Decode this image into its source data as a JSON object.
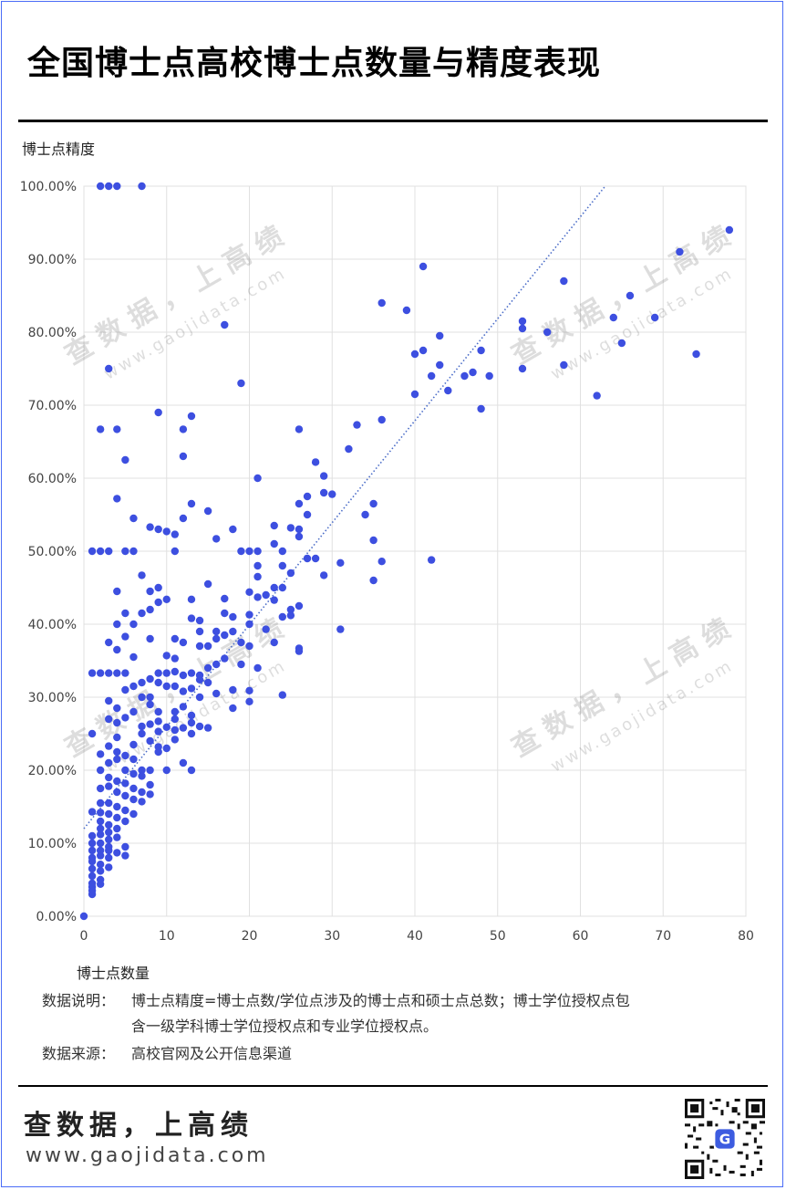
{
  "title": "全国博士点高校博士点数量与精度表现",
  "footer": {
    "note_label": "数据说明：",
    "note_line1": "博士点精度=博士点数/学位点涉及的博士点和硕士点总数；博士学位授权点包",
    "note_line2": "含一级学科博士学位授权点和专业学位授权点。",
    "source_label": "数据来源：",
    "source_text": "高校官网及公开信息渠道",
    "brand": "查数据，上高绩",
    "site": "www.gaojidata.com"
  },
  "watermark": {
    "line1": "查数据，上高绩",
    "line2": "www.gaojidata.com"
  },
  "colors": {
    "point": "#3d4fe0",
    "trend": "#4a6cc8",
    "grid": "#e0e0e0",
    "frame": "#4a6cf7"
  },
  "chart_data": {
    "type": "scatter",
    "xlabel": "博士点数量",
    "ylabel": "博士点精度",
    "xlim": [
      0,
      80
    ],
    "ylim": [
      0,
      100
    ],
    "x_ticks": [
      "0",
      "10",
      "20",
      "30",
      "40",
      "50",
      "60",
      "70",
      "80"
    ],
    "y_ticks": [
      "0.00%",
      "10.00%",
      "20.00%",
      "30.00%",
      "40.00%",
      "50.00%",
      "60.00%",
      "70.00%",
      "80.00%",
      "90.00%",
      "100.00%"
    ],
    "grid": true,
    "trendline": {
      "style": "dotted",
      "from": [
        0,
        12.0
      ],
      "to": [
        63,
        100
      ]
    },
    "points": [
      [
        0,
        0
      ],
      [
        2,
        100
      ],
      [
        3,
        100
      ],
      [
        4,
        100
      ],
      [
        7,
        100
      ],
      [
        78,
        94
      ],
      [
        72,
        91
      ],
      [
        41,
        89
      ],
      [
        58,
        87
      ],
      [
        66,
        85
      ],
      [
        36,
        84
      ],
      [
        39,
        83
      ],
      [
        64,
        82
      ],
      [
        69,
        82
      ],
      [
        53,
        81.5
      ],
      [
        53,
        80.5
      ],
      [
        56,
        80
      ],
      [
        43,
        79.5
      ],
      [
        65,
        78.5
      ],
      [
        17,
        81
      ],
      [
        41,
        77.5
      ],
      [
        40,
        77
      ],
      [
        48,
        77.5
      ],
      [
        74,
        77
      ],
      [
        58,
        75.5
      ],
      [
        43,
        75.5
      ],
      [
        53,
        75
      ],
      [
        47,
        74.5
      ],
      [
        46,
        74
      ],
      [
        49,
        74
      ],
      [
        42,
        74
      ],
      [
        3,
        75
      ],
      [
        19,
        73
      ],
      [
        44,
        72
      ],
      [
        40,
        71.5
      ],
      [
        62,
        71.3
      ],
      [
        48,
        69.5
      ],
      [
        9,
        69
      ],
      [
        13,
        68.5
      ],
      [
        36,
        68
      ],
      [
        33,
        67.3
      ],
      [
        26,
        66.7
      ],
      [
        2,
        66.7
      ],
      [
        4,
        66.7
      ],
      [
        12,
        66.7
      ],
      [
        32,
        64
      ],
      [
        5,
        62.5
      ],
      [
        12,
        63
      ],
      [
        28,
        62.2
      ],
      [
        29,
        60.3
      ],
      [
        21,
        60
      ],
      [
        30,
        57.8
      ],
      [
        29,
        58
      ],
      [
        27,
        57.5
      ],
      [
        4,
        57.2
      ],
      [
        26,
        56.5
      ],
      [
        13,
        56.5
      ],
      [
        35,
        56.5
      ],
      [
        15,
        55.5
      ],
      [
        27,
        55
      ],
      [
        34,
        55
      ],
      [
        6,
        54.5
      ],
      [
        12,
        54.5
      ],
      [
        23,
        53.5
      ],
      [
        8,
        53.3
      ],
      [
        9,
        53
      ],
      [
        10,
        52.7
      ],
      [
        11,
        52.3
      ],
      [
        25,
        53.2
      ],
      [
        26,
        53
      ],
      [
        18,
        53
      ],
      [
        16,
        51.7
      ],
      [
        26,
        52
      ],
      [
        35,
        51.5
      ],
      [
        23,
        51
      ],
      [
        1,
        50
      ],
      [
        2,
        50
      ],
      [
        3,
        50
      ],
      [
        5,
        50
      ],
      [
        6,
        50
      ],
      [
        11,
        50
      ],
      [
        19,
        50
      ],
      [
        20,
        50
      ],
      [
        21,
        50
      ],
      [
        24,
        50
      ],
      [
        27,
        49
      ],
      [
        28,
        49
      ],
      [
        36,
        48.6
      ],
      [
        42,
        48.8
      ],
      [
        31,
        48.4
      ],
      [
        21,
        48
      ],
      [
        24,
        48
      ],
      [
        25,
        47
      ],
      [
        21,
        46.5
      ],
      [
        29,
        46.7
      ],
      [
        35,
        46
      ],
      [
        7,
        46.7
      ],
      [
        15,
        45.5
      ],
      [
        23,
        45
      ],
      [
        24,
        45
      ],
      [
        9,
        45
      ],
      [
        8,
        44.5
      ],
      [
        4,
        44.5
      ],
      [
        20,
        44.4
      ],
      [
        22,
        44
      ],
      [
        21,
        43.7
      ],
      [
        10,
        43.4
      ],
      [
        13,
        43.4
      ],
      [
        17,
        43.5
      ],
      [
        23,
        43.3
      ],
      [
        9,
        43
      ],
      [
        26,
        42.5
      ],
      [
        25,
        42
      ],
      [
        8,
        42
      ],
      [
        5,
        41.5
      ],
      [
        7,
        41.5
      ],
      [
        17,
        41.5
      ],
      [
        14,
        40.5
      ],
      [
        13,
        40.8
      ],
      [
        20,
        41.3
      ],
      [
        18,
        41
      ],
      [
        24,
        41
      ],
      [
        25,
        41.2
      ],
      [
        6,
        40
      ],
      [
        4,
        40
      ],
      [
        20,
        40
      ],
      [
        22,
        39.3
      ],
      [
        14,
        39
      ],
      [
        16,
        39
      ],
      [
        17,
        38.5
      ],
      [
        18,
        39
      ],
      [
        31,
        39.3
      ],
      [
        8,
        38
      ],
      [
        11,
        38
      ],
      [
        5,
        38.3
      ],
      [
        3,
        37.5
      ],
      [
        16,
        38
      ],
      [
        19,
        37.5
      ],
      [
        23,
        37.5
      ],
      [
        12,
        37.5
      ],
      [
        14,
        37
      ],
      [
        15,
        37
      ],
      [
        20,
        37
      ],
      [
        26,
        36.7
      ],
      [
        26,
        36.3
      ],
      [
        6,
        35.5
      ],
      [
        10,
        35.7
      ],
      [
        11,
        35.3
      ],
      [
        16,
        34.5
      ],
      [
        17,
        35.3
      ],
      [
        4,
        36.5
      ],
      [
        15,
        34
      ],
      [
        19,
        34.5
      ],
      [
        21,
        34
      ],
      [
        11,
        33.5
      ],
      [
        12,
        33
      ],
      [
        2,
        33.3
      ],
      [
        3,
        33.3
      ],
      [
        4,
        33.3
      ],
      [
        5,
        33.3
      ],
      [
        9,
        33.3
      ],
      [
        10,
        33.3
      ],
      [
        1,
        33.3
      ],
      [
        13,
        33.3
      ],
      [
        14,
        33
      ],
      [
        7,
        32
      ],
      [
        8,
        32.5
      ],
      [
        9,
        32
      ],
      [
        14,
        32.4
      ],
      [
        15,
        32
      ],
      [
        10,
        31.5
      ],
      [
        11,
        31.5
      ],
      [
        12,
        30.8
      ],
      [
        13,
        31.2
      ],
      [
        6,
        31.5
      ],
      [
        7,
        30
      ],
      [
        5,
        31
      ],
      [
        18,
        31
      ],
      [
        20,
        30.9
      ],
      [
        16,
        30.5
      ],
      [
        24,
        30.3
      ],
      [
        20,
        29.4
      ],
      [
        8,
        30
      ],
      [
        14,
        30
      ],
      [
        3,
        29.5
      ],
      [
        12,
        28.7
      ],
      [
        18,
        28.5
      ],
      [
        4,
        28.5
      ],
      [
        6,
        28
      ],
      [
        8,
        29
      ],
      [
        9,
        28
      ],
      [
        11,
        28
      ],
      [
        13,
        27.5
      ],
      [
        5,
        27.2
      ],
      [
        9,
        26.7
      ],
      [
        11,
        27
      ],
      [
        13,
        26.5
      ],
      [
        3,
        27
      ],
      [
        4,
        26.5
      ],
      [
        7,
        26
      ],
      [
        8,
        26.3
      ],
      [
        10,
        25.9
      ],
      [
        11,
        25.5
      ],
      [
        12,
        25.8
      ],
      [
        15,
        25.8
      ],
      [
        14,
        26
      ],
      [
        1,
        25
      ],
      [
        7,
        25
      ],
      [
        9,
        25.3
      ],
      [
        13,
        25
      ],
      [
        4,
        24.5
      ],
      [
        8,
        24
      ],
      [
        11,
        24.2
      ],
      [
        3,
        23.3
      ],
      [
        6,
        23.5
      ],
      [
        9,
        23.2
      ],
      [
        10,
        23
      ],
      [
        4,
        22.5
      ],
      [
        5,
        22
      ],
      [
        2,
        22.2
      ],
      [
        9,
        22.5
      ],
      [
        12,
        21
      ],
      [
        3,
        21
      ],
      [
        4,
        21.5
      ],
      [
        6,
        21.5
      ],
      [
        7,
        20
      ],
      [
        8,
        20
      ],
      [
        10,
        20
      ],
      [
        13,
        20
      ],
      [
        2,
        20
      ],
      [
        5,
        20
      ],
      [
        6,
        19.5
      ],
      [
        3,
        19
      ],
      [
        7,
        19.2
      ],
      [
        4,
        18.5
      ],
      [
        5,
        18.2
      ],
      [
        8,
        18
      ],
      [
        6,
        17.5
      ],
      [
        2,
        17.5
      ],
      [
        3,
        17.8
      ],
      [
        7,
        17
      ],
      [
        4,
        17
      ],
      [
        5,
        16.5
      ],
      [
        8,
        16.7
      ],
      [
        6,
        16
      ],
      [
        2,
        15.5
      ],
      [
        3,
        15.5
      ],
      [
        7,
        15.7
      ],
      [
        4,
        15
      ],
      [
        5,
        14.5
      ],
      [
        1,
        14.3
      ],
      [
        2,
        14.2
      ],
      [
        3,
        14
      ],
      [
        6,
        14
      ],
      [
        4,
        13.5
      ],
      [
        5,
        13
      ],
      [
        2,
        13
      ],
      [
        3,
        12.5
      ],
      [
        4,
        12
      ],
      [
        2,
        12
      ],
      [
        1,
        11
      ],
      [
        2,
        11.2
      ],
      [
        3,
        11.5
      ],
      [
        3,
        10.5
      ],
      [
        4,
        10.8
      ],
      [
        1,
        10
      ],
      [
        2,
        10
      ],
      [
        3,
        9.5
      ],
      [
        5,
        9.5
      ],
      [
        1,
        9
      ],
      [
        2,
        9
      ],
      [
        3,
        9
      ],
      [
        4,
        8.7
      ],
      [
        1,
        8
      ],
      [
        2,
        8.3
      ],
      [
        3,
        8
      ],
      [
        5,
        8.3
      ],
      [
        1,
        7.5
      ],
      [
        2,
        7.1
      ],
      [
        3,
        6.7
      ],
      [
        1,
        6.5
      ],
      [
        2,
        6.2
      ],
      [
        1,
        5.5
      ],
      [
        2,
        5
      ],
      [
        1,
        4.5
      ],
      [
        2,
        4.4
      ],
      [
        1,
        4
      ],
      [
        1,
        3.5
      ],
      [
        1,
        3
      ]
    ]
  }
}
